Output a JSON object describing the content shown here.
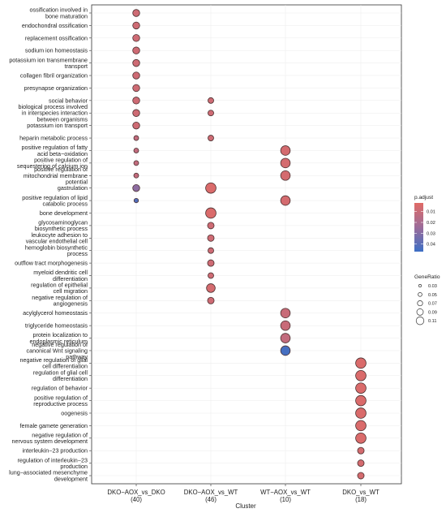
{
  "chart_data": {
    "type": "dot",
    "xlabel": "Cluster",
    "clusters": [
      {
        "name": "DKO−AOX_vs_DKO",
        "count": "(40)"
      },
      {
        "name": "DKO−AOX_vs_WT",
        "count": "(46)"
      },
      {
        "name": "WT−AOX_vs_WT",
        "count": "(10)"
      },
      {
        "name": "DKO_vs_WT",
        "count": "(18)"
      }
    ],
    "terms": [
      "ossification involved in\nbone maturation",
      "endochondral ossification",
      "replacement ossification",
      "sodium ion homeostasis",
      "potassium ion transmembrane\ntransport",
      "collagen fibril organization",
      "presynapse organization",
      "social behavior",
      "biological process involved\nin interspecies interaction\nbetween organisms",
      "potassium ion transport",
      "heparin metabolic process",
      "positive regulation of fatty\nacid beta−oxidation",
      "positive regulation of\nsequestering of calcium ion",
      "positive regulation of\nmitochondrial membrane\npotential",
      "gastrulation",
      "positive regulation of lipid\ncatabolic process",
      "bone development",
      "glycosaminoglycan\nbiosynthetic process",
      "leukocyte adhesion to\nvascular endothelial cell",
      "hemoglobin biosynthetic\nprocess",
      "outflow tract morphogenesis",
      "myeloid dendritic cell\ndifferentiation",
      "regulation of epithelial\ncell migration",
      "negative regulation of\nangiogenesis",
      "acylglycerol homeostasis",
      "triglyceride homeostasis",
      "protein localization to\nendoplasmic reticulum",
      "negative regulation of\ncanonical Wnt signaling\npathway",
      "negative regulation of glial\ncell differentiation",
      "regulation of glial cell\ndifferentiation",
      "regulation of behavior",
      "positive regulation of\nreproductive process",
      "oogenesis",
      "female gamete generation",
      "negative regulation of\nnervous system development",
      "interleukin−23 production",
      "regulation of interleukin−23\nproduction",
      "lung−associated mesenchyme\ndevelopment"
    ],
    "points": [
      {
        "cluster": 0,
        "term": 0,
        "gene_ratio": 0.07,
        "p_adjust": 0.008
      },
      {
        "cluster": 0,
        "term": 1,
        "gene_ratio": 0.07,
        "p_adjust": 0.008
      },
      {
        "cluster": 0,
        "term": 2,
        "gene_ratio": 0.07,
        "p_adjust": 0.008
      },
      {
        "cluster": 0,
        "term": 3,
        "gene_ratio": 0.07,
        "p_adjust": 0.008
      },
      {
        "cluster": 0,
        "term": 4,
        "gene_ratio": 0.07,
        "p_adjust": 0.008
      },
      {
        "cluster": 0,
        "term": 5,
        "gene_ratio": 0.07,
        "p_adjust": 0.008
      },
      {
        "cluster": 0,
        "term": 6,
        "gene_ratio": 0.07,
        "p_adjust": 0.008
      },
      {
        "cluster": 0,
        "term": 7,
        "gene_ratio": 0.07,
        "p_adjust": 0.008
      },
      {
        "cluster": 0,
        "term": 8,
        "gene_ratio": 0.07,
        "p_adjust": 0.008
      },
      {
        "cluster": 0,
        "term": 9,
        "gene_ratio": 0.07,
        "p_adjust": 0.008
      },
      {
        "cluster": 0,
        "term": 10,
        "gene_ratio": 0.045,
        "p_adjust": 0.012
      },
      {
        "cluster": 0,
        "term": 11,
        "gene_ratio": 0.045,
        "p_adjust": 0.012
      },
      {
        "cluster": 0,
        "term": 12,
        "gene_ratio": 0.045,
        "p_adjust": 0.012
      },
      {
        "cluster": 0,
        "term": 13,
        "gene_ratio": 0.045,
        "p_adjust": 0.012
      },
      {
        "cluster": 0,
        "term": 14,
        "gene_ratio": 0.07,
        "p_adjust": 0.028
      },
      {
        "cluster": 0,
        "term": 15,
        "gene_ratio": 0.04,
        "p_adjust": 0.042
      },
      {
        "cluster": 1,
        "term": 7,
        "gene_ratio": 0.055,
        "p_adjust": 0.008
      },
      {
        "cluster": 1,
        "term": 8,
        "gene_ratio": 0.055,
        "p_adjust": 0.008
      },
      {
        "cluster": 1,
        "term": 10,
        "gene_ratio": 0.055,
        "p_adjust": 0.008
      },
      {
        "cluster": 1,
        "term": 14,
        "gene_ratio": 0.11,
        "p_adjust": 0.004
      },
      {
        "cluster": 1,
        "term": 16,
        "gene_ratio": 0.11,
        "p_adjust": 0.004
      },
      {
        "cluster": 1,
        "term": 17,
        "gene_ratio": 0.065,
        "p_adjust": 0.008
      },
      {
        "cluster": 1,
        "term": 18,
        "gene_ratio": 0.065,
        "p_adjust": 0.008
      },
      {
        "cluster": 1,
        "term": 19,
        "gene_ratio": 0.055,
        "p_adjust": 0.008
      },
      {
        "cluster": 1,
        "term": 20,
        "gene_ratio": 0.065,
        "p_adjust": 0.008
      },
      {
        "cluster": 1,
        "term": 21,
        "gene_ratio": 0.055,
        "p_adjust": 0.008
      },
      {
        "cluster": 1,
        "term": 22,
        "gene_ratio": 0.09,
        "p_adjust": 0.006
      },
      {
        "cluster": 1,
        "term": 23,
        "gene_ratio": 0.065,
        "p_adjust": 0.008
      },
      {
        "cluster": 2,
        "term": 11,
        "gene_ratio": 0.1,
        "p_adjust": 0.006
      },
      {
        "cluster": 2,
        "term": 12,
        "gene_ratio": 0.1,
        "p_adjust": 0.006
      },
      {
        "cluster": 2,
        "term": 13,
        "gene_ratio": 0.1,
        "p_adjust": 0.006
      },
      {
        "cluster": 2,
        "term": 15,
        "gene_ratio": 0.1,
        "p_adjust": 0.006
      },
      {
        "cluster": 2,
        "term": 24,
        "gene_ratio": 0.1,
        "p_adjust": 0.01
      },
      {
        "cluster": 2,
        "term": 25,
        "gene_ratio": 0.1,
        "p_adjust": 0.01
      },
      {
        "cluster": 2,
        "term": 26,
        "gene_ratio": 0.1,
        "p_adjust": 0.012
      },
      {
        "cluster": 2,
        "term": 27,
        "gene_ratio": 0.1,
        "p_adjust": 0.045
      },
      {
        "cluster": 3,
        "term": 28,
        "gene_ratio": 0.11,
        "p_adjust": 0.004
      },
      {
        "cluster": 3,
        "term": 29,
        "gene_ratio": 0.11,
        "p_adjust": 0.004
      },
      {
        "cluster": 3,
        "term": 30,
        "gene_ratio": 0.11,
        "p_adjust": 0.004
      },
      {
        "cluster": 3,
        "term": 31,
        "gene_ratio": 0.11,
        "p_adjust": 0.004
      },
      {
        "cluster": 3,
        "term": 32,
        "gene_ratio": 0.11,
        "p_adjust": 0.004
      },
      {
        "cluster": 3,
        "term": 33,
        "gene_ratio": 0.11,
        "p_adjust": 0.004
      },
      {
        "cluster": 3,
        "term": 34,
        "gene_ratio": 0.11,
        "p_adjust": 0.004
      },
      {
        "cluster": 3,
        "term": 35,
        "gene_ratio": 0.065,
        "p_adjust": 0.006
      },
      {
        "cluster": 3,
        "term": 36,
        "gene_ratio": 0.065,
        "p_adjust": 0.006
      },
      {
        "cluster": 3,
        "term": 37,
        "gene_ratio": 0.065,
        "p_adjust": 0.006
      }
    ],
    "legend": {
      "color_title": "p.adjust",
      "color_ticks": [
        "0.01",
        "0.02",
        "0.03",
        "0.04"
      ],
      "color_tick_values": [
        0.01,
        0.02,
        0.03,
        0.04
      ],
      "color_range": [
        0.002,
        0.047
      ],
      "color_low": "#e06b66",
      "color_mid": "#9c6c9a",
      "color_high": "#3d6fc5",
      "size_title": "GeneRatio",
      "size_ticks": [
        "0.03",
        "0.05",
        "0.07",
        "0.09",
        "0.11"
      ],
      "size_tick_values": [
        0.03,
        0.05,
        0.07,
        0.09,
        0.11
      ]
    },
    "grid": true,
    "point_outline_color": "#4a3030"
  }
}
